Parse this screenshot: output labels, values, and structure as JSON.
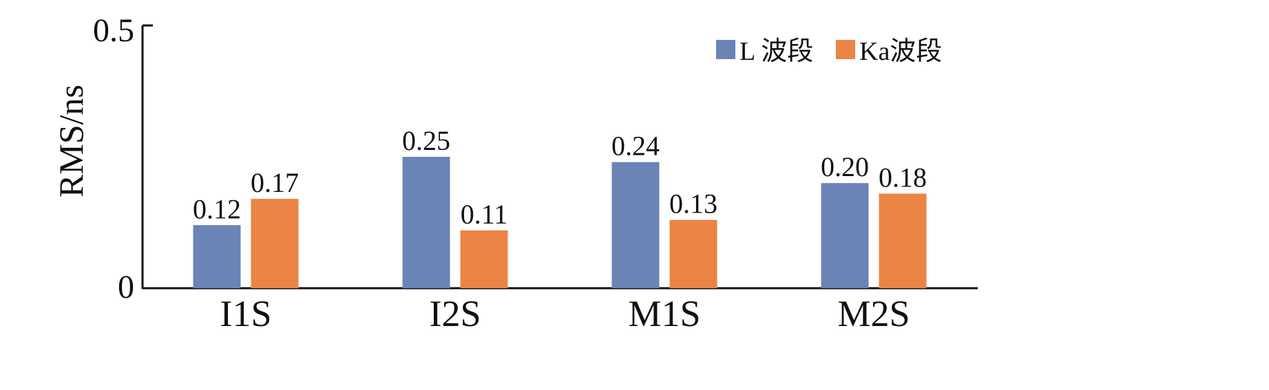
{
  "chart_data": {
    "type": "bar",
    "categories": [
      "I1S",
      "I2S",
      "M1S",
      "M2S"
    ],
    "series": [
      {
        "name": "L 波段",
        "color": "#6a84b5",
        "values": [
          0.12,
          0.25,
          0.24,
          0.2
        ],
        "labels": [
          "0.12",
          "0.25",
          "0.24",
          "0.20"
        ]
      },
      {
        "name": "Ka波段",
        "color": "#eb8444",
        "values": [
          0.17,
          0.11,
          0.13,
          0.18
        ],
        "labels": [
          "0.17",
          "0.11",
          "0.13",
          "0.18"
        ]
      }
    ],
    "ylabel": "RMS/ns",
    "xlabel": "",
    "ylim": [
      0,
      0.5
    ],
    "yticks": [
      "0",
      "0.5"
    ],
    "grid": false,
    "legend_position": "top-right"
  }
}
